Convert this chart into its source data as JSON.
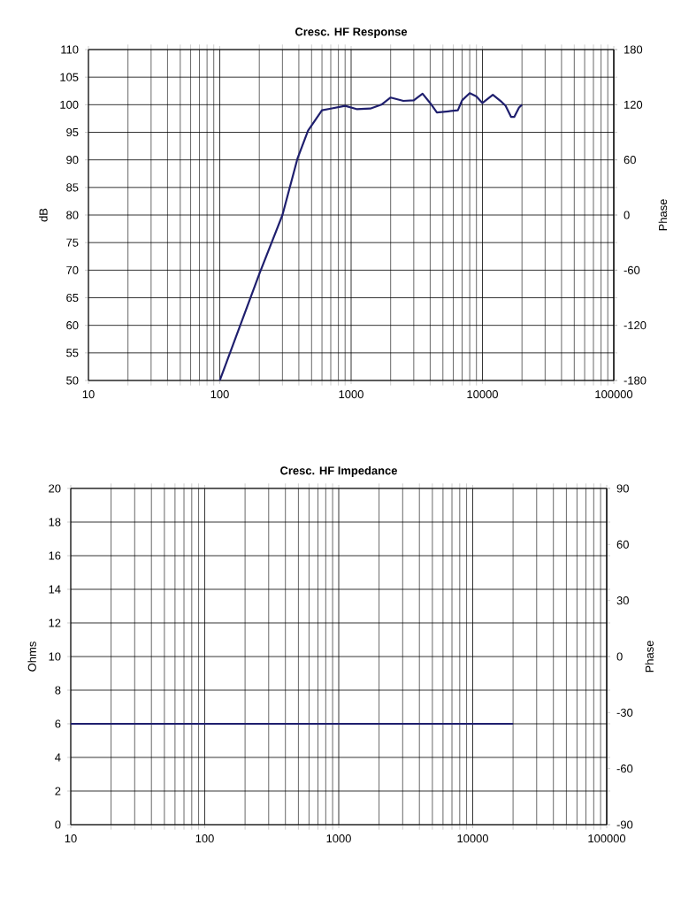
{
  "chart_data": [
    {
      "type": "line",
      "title": "Cresc. HF Response",
      "ylabel": "dB",
      "y2label": "Phase",
      "log": "x",
      "grid": true,
      "marker": "none",
      "line_style": "solid",
      "xlim": [
        10,
        100000
      ],
      "xticks": [
        10,
        100,
        1000,
        10000,
        100000
      ],
      "ylim": [
        50,
        110
      ],
      "yticks": [
        50,
        55,
        60,
        65,
        70,
        75,
        80,
        85,
        90,
        95,
        100,
        105,
        110
      ],
      "y2lim": [
        -180,
        180
      ],
      "y2ticks": [
        -180,
        -120,
        -60,
        0,
        60,
        120,
        180
      ],
      "series": [
        {
          "color": "#1f1f6e",
          "x": [
            100,
            200,
            300,
            390,
            470,
            600,
            700,
            900,
            1100,
            1400,
            1700,
            2000,
            2500,
            3000,
            3500,
            4000,
            4500,
            5500,
            6500,
            7000,
            8000,
            9000,
            10000,
            12000,
            14000,
            15000,
            16500,
            17500,
            19000,
            20000
          ],
          "values": [
            50,
            69.3,
            80,
            90.2,
            95.3,
            99,
            99.3,
            99.8,
            99.2,
            99.3,
            100,
            101.3,
            100.7,
            100.8,
            102,
            100.3,
            98.6,
            98.8,
            99,
            100.8,
            102.1,
            101.5,
            100.3,
            101.8,
            100.5,
            99.8,
            97.8,
            97.8,
            99.5,
            100
          ]
        }
      ]
    },
    {
      "type": "line",
      "title": "Cresc. HF  Impedance",
      "ylabel": "Ohms",
      "y2label": "Phase",
      "log": "x",
      "grid": true,
      "marker": "none",
      "line_style": "solid",
      "xlim": [
        10,
        100000
      ],
      "xticks": [
        10,
        100,
        1000,
        10000,
        100000
      ],
      "ylim": [
        0,
        20
      ],
      "yticks": [
        0,
        2,
        4,
        6,
        8,
        10,
        12,
        14,
        16,
        18,
        20
      ],
      "y2lim": [
        -90,
        90
      ],
      "y2ticks": [
        -90,
        -60,
        -30,
        0,
        30,
        60,
        90
      ],
      "series": [
        {
          "color": "#1f1f6e",
          "x": [
            10,
            20000
          ],
          "values": [
            6,
            6
          ]
        }
      ]
    }
  ]
}
